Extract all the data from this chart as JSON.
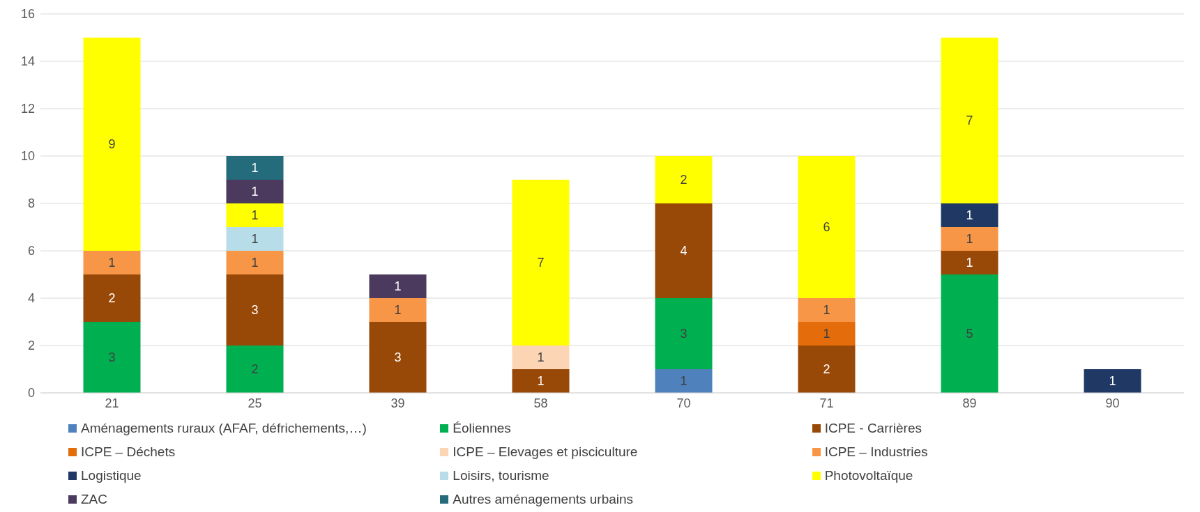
{
  "chart_data": {
    "type": "bar",
    "stacked": true,
    "categories": [
      "21",
      "25",
      "39",
      "58",
      "70",
      "71",
      "89",
      "90"
    ],
    "series": [
      {
        "name": "Aménagements ruraux (AFAF, défrichements,…)",
        "color": "#4f81bd",
        "values": [
          null,
          null,
          null,
          null,
          1,
          null,
          null,
          null
        ]
      },
      {
        "name": "Éoliennes",
        "color": "#00b050",
        "values": [
          3,
          2,
          null,
          null,
          3,
          null,
          5,
          null
        ]
      },
      {
        "name": "ICPE - Carrières",
        "color": "#984807",
        "values": [
          2,
          3,
          3,
          1,
          4,
          2,
          1,
          null
        ]
      },
      {
        "name": "ICPE – Déchets",
        "color": "#e46c0a",
        "values": [
          null,
          null,
          null,
          null,
          null,
          1,
          null,
          null
        ]
      },
      {
        "name": "ICPE – Elevages et pisciculture",
        "color": "#fcd5b5",
        "values": [
          null,
          null,
          null,
          1,
          null,
          null,
          null,
          null
        ]
      },
      {
        "name": "ICPE – Industries",
        "color": "#f79646",
        "values": [
          1,
          1,
          1,
          null,
          null,
          1,
          1,
          null
        ]
      },
      {
        "name": "Logistique",
        "color": "#1f3864",
        "values": [
          null,
          null,
          null,
          null,
          null,
          null,
          1,
          1
        ]
      },
      {
        "name": "Loisirs, tourisme",
        "color": "#b7dee8",
        "values": [
          null,
          1,
          null,
          null,
          null,
          null,
          null,
          null
        ]
      },
      {
        "name": "Photovoltaïque",
        "color": "#ffff00",
        "values": [
          9,
          1,
          null,
          7,
          2,
          6,
          7,
          null
        ]
      },
      {
        "name": "ZAC",
        "color": "#4b3a5e",
        "values": [
          null,
          1,
          1,
          null,
          null,
          null,
          null,
          null
        ]
      },
      {
        "name": "Autres aménagements urbains",
        "color": "#246c7b",
        "values": [
          null,
          1,
          null,
          null,
          null,
          null,
          null,
          null
        ]
      }
    ],
    "ylim": [
      0,
      16
    ],
    "yticks": [
      0,
      2,
      4,
      6,
      8,
      10,
      12,
      14,
      16
    ],
    "grid": "y",
    "data_labels": true,
    "legend": "bottom"
  }
}
